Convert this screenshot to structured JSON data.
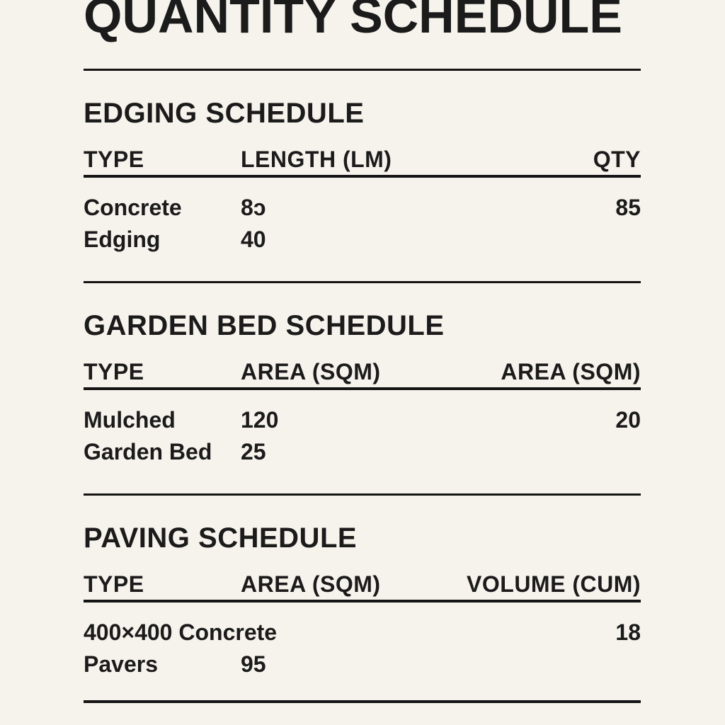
{
  "page": {
    "title": "QUANTITY SCHEDULE",
    "background_color": "#f6f3ec",
    "text_color": "#1b1b1b"
  },
  "sections": [
    {
      "heading": "EDGING SCHEDULE",
      "columns": [
        "TYPE",
        "LENGTH (LM)",
        "QTY"
      ],
      "rows": [
        [
          "Concrete",
          "8ɔ",
          "85"
        ],
        [
          "Edging",
          "40",
          ""
        ]
      ]
    },
    {
      "heading": "GARDEN BED SCHEDULE",
      "columns": [
        "TYPE",
        "AREA (SQM)",
        "AREA (SQM)"
      ],
      "rows": [
        [
          "Mulched",
          "120",
          "20"
        ],
        [
          "Garden Bed",
          "25",
          ""
        ]
      ]
    },
    {
      "heading": "PAVING SCHEDULE",
      "columns": [
        "TYPE",
        "AREA (SQM)",
        "VOLUME (CUM)"
      ],
      "rows": [
        [
          "400×400 Concrete",
          "",
          "18"
        ],
        [
          "Pavers",
          "95",
          ""
        ]
      ]
    }
  ]
}
